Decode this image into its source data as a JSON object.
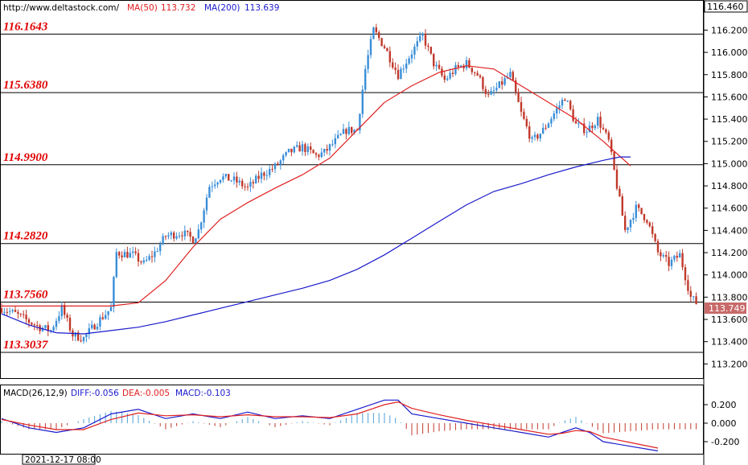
{
  "header": {
    "website": "http://www.deltastock.com/",
    "ma50_label": "MA(50)",
    "ma50_value": "113.732",
    "ma200_label": "MA(200)",
    "ma200_value": "113.639"
  },
  "macd_header": {
    "label": "MACD(26,12,9)",
    "diff": "DIFF:-0.056",
    "dea": "DEA:-0.005",
    "macd": "MACD:-0.103"
  },
  "timestamp": "2021-12-17 08:00",
  "colors": {
    "up_candle": "#3a8ed8",
    "down_candle": "#c0392b",
    "ma50": "#e02020",
    "ma200": "#1a1acc",
    "level_text": "#e00000",
    "price_badge": "#c86a6a",
    "macd_diff": "#1a1acc",
    "macd_dea": "#e02020",
    "hist_pos": "#4aa0d8",
    "hist_neg": "#c0392b"
  },
  "chart_data": {
    "type": "candlestick",
    "y_axis": {
      "range": [
        113.1,
        116.46
      ],
      "ticks": [
        "113.200",
        "113.400",
        "113.600",
        "113.800",
        "114.000",
        "114.200",
        "114.400",
        "114.600",
        "114.800",
        "115.000",
        "115.200",
        "115.400",
        "115.600",
        "115.800",
        "116.000",
        "116.200"
      ],
      "top_value": "116.460"
    },
    "levels": [
      {
        "value": 116.1643,
        "label": "116.1643"
      },
      {
        "value": 115.638,
        "label": "115.6380"
      },
      {
        "value": 114.99,
        "label": "114.9900"
      },
      {
        "value": 114.282,
        "label": "114.2820"
      },
      {
        "value": 113.756,
        "label": "113.7560"
      },
      {
        "value": 113.3037,
        "label": "113.3037"
      }
    ],
    "last_price": {
      "value": 113.749,
      "label": "113.749"
    },
    "close_anchors": [
      [
        0,
        113.7
      ],
      [
        5,
        113.65
      ],
      [
        10,
        113.58
      ],
      [
        14,
        113.53
      ],
      [
        18,
        113.5
      ],
      [
        22,
        113.7
      ],
      [
        26,
        113.46
      ],
      [
        30,
        113.43
      ],
      [
        34,
        113.55
      ],
      [
        38,
        113.65
      ],
      [
        40,
        113.7
      ],
      [
        42,
        114.2
      ],
      [
        48,
        114.18
      ],
      [
        52,
        114.1
      ],
      [
        56,
        114.2
      ],
      [
        60,
        114.35
      ],
      [
        66,
        114.38
      ],
      [
        70,
        114.32
      ],
      [
        72,
        114.4
      ],
      [
        76,
        114.8
      ],
      [
        80,
        114.88
      ],
      [
        85,
        114.85
      ],
      [
        90,
        114.78
      ],
      [
        95,
        114.9
      ],
      [
        100,
        114.97
      ],
      [
        105,
        115.1
      ],
      [
        110,
        115.15
      ],
      [
        115,
        115.07
      ],
      [
        118,
        115.1
      ],
      [
        122,
        115.2
      ],
      [
        126,
        115.3
      ],
      [
        130,
        115.3
      ],
      [
        133,
        115.85
      ],
      [
        136,
        116.2
      ],
      [
        140,
        116.05
      ],
      [
        145,
        115.8
      ],
      [
        150,
        116.0
      ],
      [
        154,
        116.15
      ],
      [
        158,
        115.9
      ],
      [
        162,
        115.75
      ],
      [
        166,
        115.85
      ],
      [
        170,
        115.9
      ],
      [
        174,
        115.8
      ],
      [
        178,
        115.6
      ],
      [
        182,
        115.7
      ],
      [
        186,
        115.8
      ],
      [
        190,
        115.45
      ],
      [
        194,
        115.2
      ],
      [
        198,
        115.3
      ],
      [
        202,
        115.45
      ],
      [
        206,
        115.6
      ],
      [
        210,
        115.35
      ],
      [
        214,
        115.3
      ],
      [
        218,
        115.4
      ],
      [
        222,
        115.2
      ],
      [
        225,
        114.8
      ],
      [
        228,
        114.4
      ],
      [
        232,
        114.6
      ],
      [
        236,
        114.5
      ],
      [
        240,
        114.2
      ],
      [
        244,
        114.1
      ],
      [
        248,
        114.18
      ],
      [
        252,
        113.8
      ],
      [
        254,
        113.749
      ]
    ],
    "ma50": [
      [
        0,
        113.72
      ],
      [
        20,
        113.72
      ],
      [
        40,
        113.72
      ],
      [
        50,
        113.75
      ],
      [
        60,
        113.95
      ],
      [
        70,
        114.25
      ],
      [
        80,
        114.5
      ],
      [
        90,
        114.65
      ],
      [
        100,
        114.78
      ],
      [
        110,
        114.9
      ],
      [
        120,
        115.05
      ],
      [
        130,
        115.3
      ],
      [
        140,
        115.55
      ],
      [
        150,
        115.7
      ],
      [
        160,
        115.82
      ],
      [
        170,
        115.88
      ],
      [
        180,
        115.85
      ],
      [
        190,
        115.7
      ],
      [
        200,
        115.55
      ],
      [
        210,
        115.4
      ],
      [
        220,
        115.2
      ],
      [
        230,
        114.98
      ]
    ],
    "ma200": [
      [
        0,
        113.65
      ],
      [
        10,
        113.55
      ],
      [
        20,
        113.48
      ],
      [
        30,
        113.47
      ],
      [
        40,
        113.5
      ],
      [
        50,
        113.53
      ],
      [
        60,
        113.58
      ],
      [
        70,
        113.64
      ],
      [
        80,
        113.7
      ],
      [
        90,
        113.76
      ],
      [
        100,
        113.82
      ],
      [
        110,
        113.88
      ],
      [
        120,
        113.95
      ],
      [
        130,
        114.05
      ],
      [
        140,
        114.18
      ],
      [
        150,
        114.33
      ],
      [
        160,
        114.48
      ],
      [
        170,
        114.63
      ],
      [
        180,
        114.75
      ],
      [
        190,
        114.82
      ],
      [
        200,
        114.9
      ],
      [
        210,
        114.97
      ],
      [
        220,
        115.03
      ],
      [
        226,
        115.06
      ],
      [
        230,
        115.06
      ]
    ],
    "macd": {
      "y_ticks": [
        "0.200",
        "0.000",
        "-0.200"
      ],
      "diff": [
        [
          0,
          0.05
        ],
        [
          10,
          -0.05
        ],
        [
          20,
          -0.1
        ],
        [
          30,
          -0.05
        ],
        [
          40,
          0.1
        ],
        [
          50,
          0.15
        ],
        [
          60,
          0.05
        ],
        [
          70,
          0.1
        ],
        [
          80,
          0.05
        ],
        [
          90,
          0.12
        ],
        [
          100,
          0.05
        ],
        [
          110,
          0.08
        ],
        [
          120,
          0.05
        ],
        [
          130,
          0.15
        ],
        [
          140,
          0.25
        ],
        [
          145,
          0.25
        ],
        [
          150,
          0.1
        ],
        [
          160,
          0.05
        ],
        [
          170,
          0.0
        ],
        [
          180,
          -0.05
        ],
        [
          190,
          -0.1
        ],
        [
          200,
          -0.15
        ],
        [
          205,
          -0.1
        ],
        [
          210,
          -0.05
        ],
        [
          215,
          -0.1
        ],
        [
          220,
          -0.2
        ],
        [
          230,
          -0.25
        ],
        [
          240,
          -0.3
        ]
      ],
      "dea": [
        [
          0,
          0.04
        ],
        [
          10,
          -0.02
        ],
        [
          20,
          -0.07
        ],
        [
          30,
          -0.07
        ],
        [
          40,
          0.04
        ],
        [
          50,
          0.11
        ],
        [
          60,
          0.08
        ],
        [
          70,
          0.09
        ],
        [
          80,
          0.07
        ],
        [
          90,
          0.09
        ],
        [
          100,
          0.07
        ],
        [
          110,
          0.07
        ],
        [
          120,
          0.06
        ],
        [
          130,
          0.1
        ],
        [
          140,
          0.2
        ],
        [
          145,
          0.23
        ],
        [
          150,
          0.16
        ],
        [
          160,
          0.09
        ],
        [
          170,
          0.03
        ],
        [
          180,
          -0.02
        ],
        [
          190,
          -0.07
        ],
        [
          200,
          -0.12
        ],
        [
          205,
          -0.11
        ],
        [
          210,
          -0.08
        ],
        [
          215,
          -0.09
        ],
        [
          220,
          -0.15
        ],
        [
          230,
          -0.21
        ],
        [
          240,
          -0.27
        ]
      ]
    }
  }
}
